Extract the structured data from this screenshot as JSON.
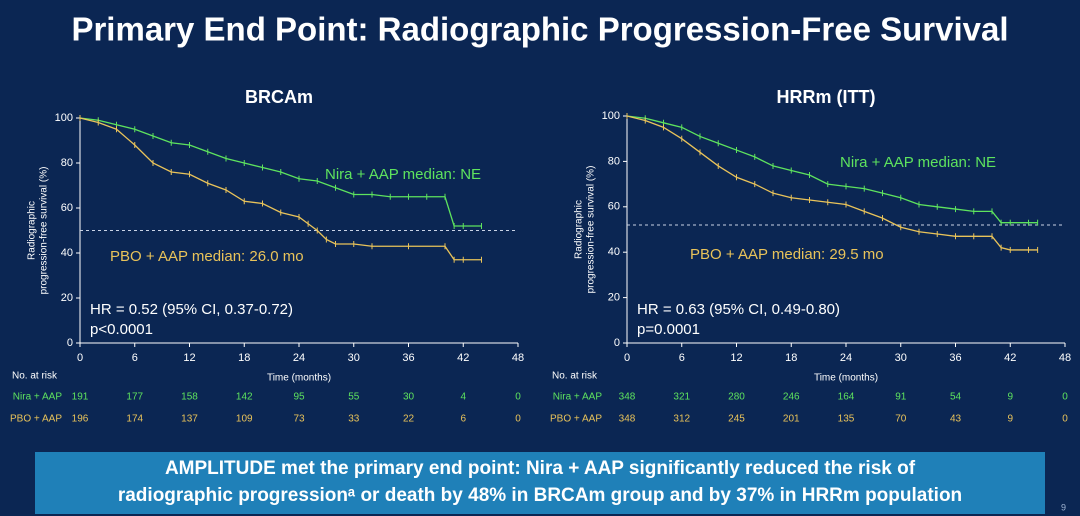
{
  "title": "Primary End Point: Radiographic Progression-Free Survival",
  "chart_data": [
    {
      "type": "line",
      "title": "BRCAm",
      "xlabel": "Time (months)",
      "ylabel": [
        "Radiographic",
        "progression-free survival (%)"
      ],
      "xlim": [
        0,
        48
      ],
      "xticks": [
        0,
        6,
        12,
        18,
        24,
        30,
        36,
        42,
        48
      ],
      "ylim": [
        0,
        100
      ],
      "yticks": [
        0,
        20,
        40,
        60,
        80,
        100
      ],
      "reference_line": 50,
      "series": [
        {
          "name": "Nira + AAP",
          "color": "#5ee35e",
          "x": [
            0,
            2,
            4,
            6,
            8,
            10,
            12,
            14,
            16,
            18,
            20,
            22,
            24,
            26,
            28,
            30,
            32,
            34,
            36,
            38,
            40,
            41,
            42,
            44
          ],
          "values": [
            100,
            99,
            97,
            95,
            92,
            89,
            88,
            85,
            82,
            80,
            78,
            76,
            73,
            72,
            69,
            66,
            66,
            65,
            65,
            65,
            65,
            52,
            52,
            52
          ]
        },
        {
          "name": "PBO + AAP",
          "color": "#e9c35a",
          "x": [
            0,
            2,
            4,
            6,
            8,
            10,
            12,
            14,
            16,
            18,
            20,
            22,
            24,
            25,
            26,
            27,
            28,
            30,
            32,
            36,
            40,
            41,
            42,
            44
          ],
          "values": [
            100,
            98,
            95,
            88,
            80,
            76,
            75,
            71,
            68,
            63,
            62,
            58,
            56,
            53,
            50,
            46,
            44,
            44,
            43,
            43,
            43,
            37,
            37,
            37
          ]
        }
      ],
      "annotations": [
        {
          "text": "Nira + AAP median: NE",
          "color": "#5ee35e"
        },
        {
          "text": "PBO + AAP median: 26.0 mo",
          "color": "#e9c35a"
        },
        {
          "text": "HR = 0.52 (95% CI, 0.37-0.72)",
          "color": "#ffffff"
        },
        {
          "text": "p<0.0001",
          "color": "#ffffff"
        }
      ],
      "at_risk": {
        "label": "No. at risk",
        "rows": [
          {
            "name": "Nira + AAP",
            "color": "#5ee35e",
            "values": [
              191,
              177,
              158,
              142,
              95,
              55,
              30,
              4,
              0
            ]
          },
          {
            "name": "PBO + AAP",
            "color": "#e9c35a",
            "values": [
              196,
              174,
              137,
              109,
              73,
              33,
              22,
              6,
              0
            ]
          }
        ]
      }
    },
    {
      "type": "line",
      "title": "HRRm (ITT)",
      "xlabel": "Time (months)",
      "ylabel": [
        "Radiographic",
        "progression-free survival (%)"
      ],
      "xlim": [
        0,
        48
      ],
      "xticks": [
        0,
        6,
        12,
        18,
        24,
        30,
        36,
        42,
        48
      ],
      "ylim": [
        0,
        100
      ],
      "yticks": [
        0,
        20,
        40,
        60,
        80,
        100
      ],
      "reference_line": 52,
      "series": [
        {
          "name": "Nira + AAP",
          "color": "#5ee35e",
          "x": [
            0,
            2,
            4,
            6,
            8,
            10,
            12,
            14,
            16,
            18,
            20,
            22,
            24,
            26,
            28,
            30,
            32,
            34,
            36,
            38,
            40,
            41,
            42,
            44,
            45
          ],
          "values": [
            100,
            99,
            97,
            95,
            91,
            88,
            85,
            82,
            78,
            76,
            74,
            70,
            69,
            68,
            66,
            64,
            61,
            60,
            59,
            58,
            58,
            53,
            53,
            53,
            53
          ]
        },
        {
          "name": "PBO + AAP",
          "color": "#e9c35a",
          "x": [
            0,
            2,
            4,
            6,
            8,
            10,
            12,
            14,
            16,
            18,
            20,
            22,
            24,
            26,
            28,
            30,
            32,
            34,
            36,
            38,
            40,
            41,
            42,
            44,
            45
          ],
          "values": [
            100,
            98,
            95,
            90,
            84,
            78,
            73,
            70,
            66,
            64,
            63,
            62,
            61,
            58,
            55,
            51,
            49,
            48,
            47,
            47,
            47,
            42,
            41,
            41,
            41
          ]
        }
      ],
      "annotations": [
        {
          "text": "Nira + AAP median: NE",
          "color": "#5ee35e"
        },
        {
          "text": "PBO + AAP median: 29.5 mo",
          "color": "#e9c35a"
        },
        {
          "text": "HR = 0.63 (95% CI, 0.49-0.80)",
          "color": "#ffffff"
        },
        {
          "text": "p=0.0001",
          "color": "#ffffff"
        }
      ],
      "at_risk": {
        "label": "No. at risk",
        "rows": [
          {
            "name": "Nira + AAP",
            "color": "#5ee35e",
            "values": [
              348,
              321,
              280,
              246,
              164,
              91,
              54,
              9,
              0
            ]
          },
          {
            "name": "PBO + AAP",
            "color": "#e9c35a",
            "values": [
              348,
              312,
              245,
              201,
              135,
              70,
              43,
              9,
              0
            ]
          }
        ]
      }
    }
  ],
  "footer": {
    "lines": [
      "AMPLITUDE met the primary end point: Nira + AAP significantly reduced the risk of",
      "radiographic progressionᵃ or death by 48% in BRCAm group and by 37% in HRRm population"
    ]
  },
  "page_number": "9"
}
